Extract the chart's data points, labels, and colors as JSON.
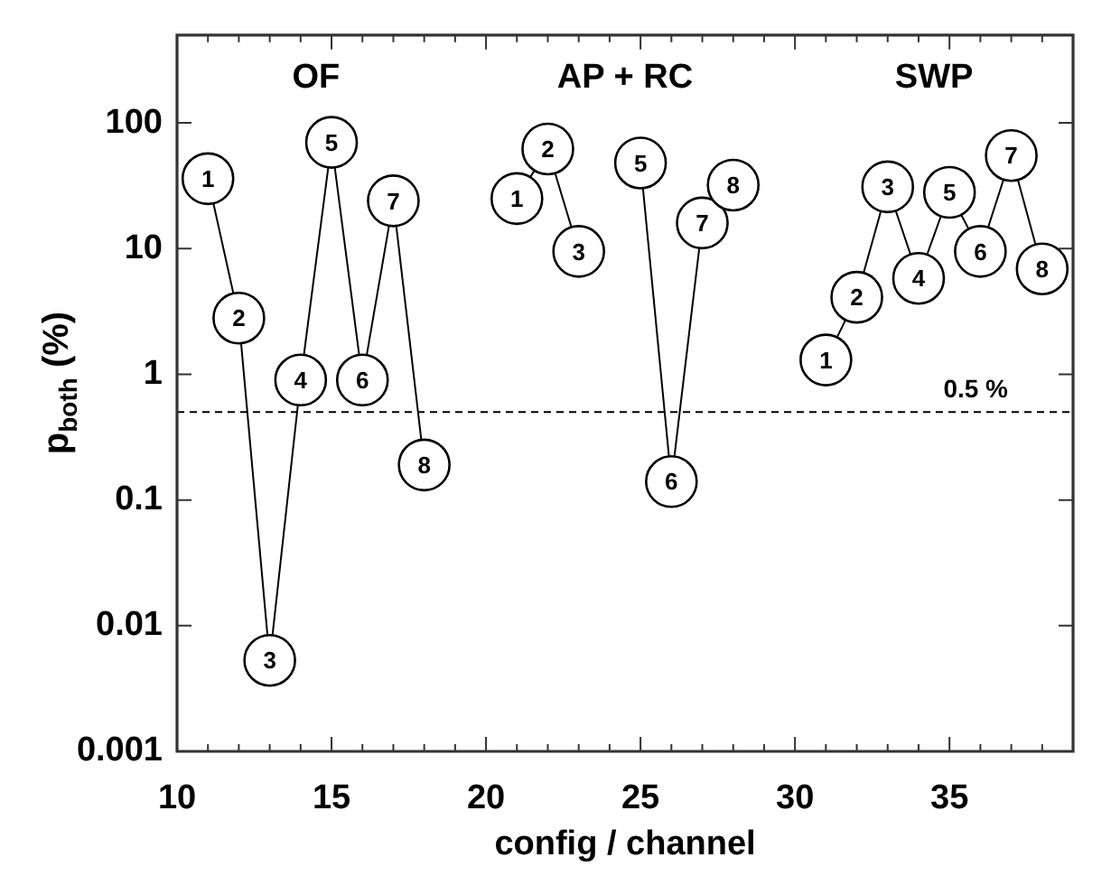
{
  "chart_data": {
    "type": "line",
    "xlabel": "config / channel",
    "ylabel": "p$_{both}$ (%)",
    "xlim": [
      10,
      39
    ],
    "ylim": [
      0.001,
      500
    ],
    "log": "y",
    "xticks": [
      10,
      {
        "value": 11,
        "label": null
      },
      {
        "value": 12,
        "label": null
      },
      {
        "value": 13,
        "label": null
      },
      {
        "value": 14,
        "label": null
      },
      15,
      {
        "value": 16,
        "label": null
      },
      {
        "value": 17,
        "label": null
      },
      {
        "value": 18,
        "label": null
      },
      {
        "value": 19,
        "label": null
      },
      20,
      {
        "value": 21,
        "label": null
      },
      {
        "value": 22,
        "label": null
      },
      {
        "value": 23,
        "label": null
      },
      {
        "value": 24,
        "label": null
      },
      25,
      {
        "value": 26,
        "label": null
      },
      {
        "value": 27,
        "label": null
      },
      {
        "value": 28,
        "label": null
      },
      {
        "value": 29,
        "label": null
      },
      30,
      {
        "value": 31,
        "label": null
      },
      {
        "value": 32,
        "label": null
      },
      {
        "value": 33,
        "label": null
      },
      {
        "value": 34,
        "label": null
      },
      35,
      {
        "value": 36,
        "label": null
      },
      {
        "value": 37,
        "label": null
      },
      {
        "value": 38,
        "label": null
      },
      {
        "value": 39,
        "label": null
      }
    ],
    "yticks": [
      0.001,
      0.01,
      0.1,
      1,
      10,
      100
    ],
    "grid": false,
    "legend": false,
    "marker": "circle",
    "line_style": "solid",
    "series": [
      {
        "name": "OF",
        "color": "#000000",
        "x": [
          11,
          12,
          13,
          14,
          15,
          16,
          17,
          18
        ],
        "values": [
          36,
          2.8,
          0.0053,
          0.9,
          70,
          0.9,
          24,
          0.19
        ]
      },
      {
        "name": "AP + RC",
        "color": "#000000",
        "x": [
          21,
          22,
          23,
          24,
          25,
          26,
          27,
          28
        ],
        "values": [
          25,
          62,
          9.5,
          null,
          48,
          0.14,
          16,
          32
        ]
      },
      {
        "name": "SWP",
        "color": "#000000",
        "x": [
          31,
          32,
          33,
          34,
          35,
          36,
          37,
          38
        ],
        "values": [
          1.3,
          4.1,
          31,
          5.8,
          28,
          9.5,
          55,
          6.9
        ]
      }
    ],
    "annotations": [
      {
        "text": "1",
        "x": 11,
        "y": 36
      },
      {
        "text": "2",
        "x": 12,
        "y": 2.8
      },
      {
        "text": "3",
        "x": 13,
        "y": 0.0053
      },
      {
        "text": "4",
        "x": 14,
        "y": 0.9
      },
      {
        "text": "5",
        "x": 15,
        "y": 70
      },
      {
        "text": "6",
        "x": 16,
        "y": 0.9
      },
      {
        "text": "7",
        "x": 17,
        "y": 24
      },
      {
        "text": "8",
        "x": 18,
        "y": 0.19
      },
      {
        "text": "1",
        "x": 21,
        "y": 25
      },
      {
        "text": "2",
        "x": 22,
        "y": 62
      },
      {
        "text": "3",
        "x": 23,
        "y": 9.5
      },
      {
        "text": "5",
        "x": 25,
        "y": 48
      },
      {
        "text": "6",
        "x": 26,
        "y": 0.14
      },
      {
        "text": "7",
        "x": 27,
        "y": 16
      },
      {
        "text": "8",
        "x": 28,
        "y": 32
      },
      {
        "text": "1",
        "x": 31,
        "y": 1.3
      },
      {
        "text": "2",
        "x": 32,
        "y": 4.1
      },
      {
        "text": "3",
        "x": 33,
        "y": 31
      },
      {
        "text": "4",
        "x": 34,
        "y": 5.8
      },
      {
        "text": "5",
        "x": 35,
        "y": 28
      },
      {
        "text": "6",
        "x": 36,
        "y": 9.5
      },
      {
        "text": "7",
        "x": 37,
        "y": 55
      },
      {
        "text": "8",
        "x": 38,
        "y": 6.9
      }
    ],
    "ref_lines": [
      {
        "axis": "y",
        "value": 0.5,
        "label": "0.5 %",
        "color": "#000000",
        "line_style": "dashed"
      }
    ]
  }
}
